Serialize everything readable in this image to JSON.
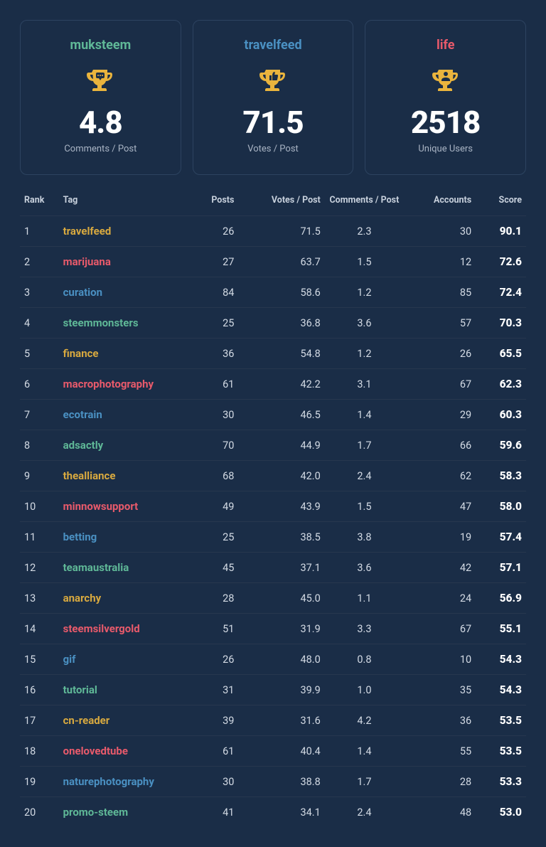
{
  "colors": {
    "green": "#5fb897",
    "blue": "#4a90c2",
    "red": "#e85a6b",
    "yellow": "#d8a93f",
    "trophy": "#eab43d",
    "trophy_inner": "#1a2d47",
    "bg": "#1a2d47",
    "border": "#2d4360",
    "row_border": "#27374e",
    "text": "#c7d0dc",
    "white": "#ffffff"
  },
  "cards": [
    {
      "title": "muksteem",
      "color": "green",
      "icon": "comment",
      "value": "4.8",
      "sub": "Comments / Post"
    },
    {
      "title": "travelfeed",
      "color": "blue",
      "icon": "thumb",
      "value": "71.5",
      "sub": "Votes / Post"
    },
    {
      "title": "life",
      "color": "red",
      "icon": "user",
      "value": "2518",
      "sub": "Unique Users"
    }
  ],
  "table": {
    "headers": {
      "rank": "Rank",
      "tag": "Tag",
      "posts": "Posts",
      "votes": "Votes / Post",
      "comments": "Comments / Post",
      "accounts": "Accounts",
      "score": "Score"
    },
    "tag_color_cycle": [
      "yellow",
      "red",
      "blue",
      "green"
    ],
    "rows": [
      {
        "rank": 1,
        "tag": "travelfeed",
        "posts": 26,
        "votes": "71.5",
        "comments": "2.3",
        "accounts": 30,
        "score": "90.1"
      },
      {
        "rank": 2,
        "tag": "marijuana",
        "posts": 27,
        "votes": "63.7",
        "comments": "1.5",
        "accounts": 12,
        "score": "72.6"
      },
      {
        "rank": 3,
        "tag": "curation",
        "posts": 84,
        "votes": "58.6",
        "comments": "1.2",
        "accounts": 85,
        "score": "72.4"
      },
      {
        "rank": 4,
        "tag": "steemmonsters",
        "posts": 25,
        "votes": "36.8",
        "comments": "3.6",
        "accounts": 57,
        "score": "70.3"
      },
      {
        "rank": 5,
        "tag": "finance",
        "posts": 36,
        "votes": "54.8",
        "comments": "1.2",
        "accounts": 26,
        "score": "65.5"
      },
      {
        "rank": 6,
        "tag": "macrophotography",
        "posts": 61,
        "votes": "42.2",
        "comments": "3.1",
        "accounts": 67,
        "score": "62.3"
      },
      {
        "rank": 7,
        "tag": "ecotrain",
        "posts": 30,
        "votes": "46.5",
        "comments": "1.4",
        "accounts": 29,
        "score": "60.3"
      },
      {
        "rank": 8,
        "tag": "adsactly",
        "posts": 70,
        "votes": "44.9",
        "comments": "1.7",
        "accounts": 66,
        "score": "59.6"
      },
      {
        "rank": 9,
        "tag": "thealliance",
        "posts": 68,
        "votes": "42.0",
        "comments": "2.4",
        "accounts": 62,
        "score": "58.3"
      },
      {
        "rank": 10,
        "tag": "minnowsupport",
        "posts": 49,
        "votes": "43.9",
        "comments": "1.5",
        "accounts": 47,
        "score": "58.0"
      },
      {
        "rank": 11,
        "tag": "betting",
        "posts": 25,
        "votes": "38.5",
        "comments": "3.8",
        "accounts": 19,
        "score": "57.4"
      },
      {
        "rank": 12,
        "tag": "teamaustralia",
        "posts": 45,
        "votes": "37.1",
        "comments": "3.6",
        "accounts": 42,
        "score": "57.1"
      },
      {
        "rank": 13,
        "tag": "anarchy",
        "posts": 28,
        "votes": "45.0",
        "comments": "1.1",
        "accounts": 24,
        "score": "56.9"
      },
      {
        "rank": 14,
        "tag": "steemsilvergold",
        "posts": 51,
        "votes": "31.9",
        "comments": "3.3",
        "accounts": 67,
        "score": "55.1"
      },
      {
        "rank": 15,
        "tag": "gif",
        "posts": 26,
        "votes": "48.0",
        "comments": "0.8",
        "accounts": 10,
        "score": "54.3"
      },
      {
        "rank": 16,
        "tag": "tutorial",
        "posts": 31,
        "votes": "39.9",
        "comments": "1.0",
        "accounts": 35,
        "score": "54.3"
      },
      {
        "rank": 17,
        "tag": "cn-reader",
        "posts": 39,
        "votes": "31.6",
        "comments": "4.2",
        "accounts": 36,
        "score": "53.5"
      },
      {
        "rank": 18,
        "tag": "onelovedtube",
        "posts": 61,
        "votes": "40.4",
        "comments": "1.4",
        "accounts": 55,
        "score": "53.5"
      },
      {
        "rank": 19,
        "tag": "naturephotography",
        "posts": 30,
        "votes": "38.8",
        "comments": "1.7",
        "accounts": 28,
        "score": "53.3"
      },
      {
        "rank": 20,
        "tag": "promo-steem",
        "posts": 41,
        "votes": "34.1",
        "comments": "2.4",
        "accounts": 48,
        "score": "53.0"
      }
    ]
  }
}
